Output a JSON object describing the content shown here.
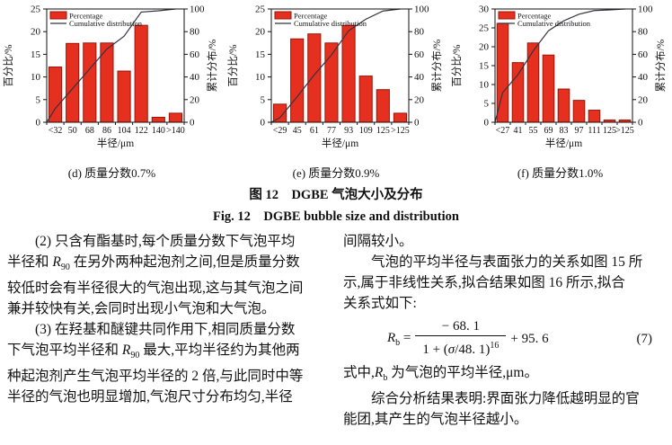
{
  "figure": {
    "caption_cn": "图 12　DGBE 气泡大小及分布",
    "caption_en": "Fig. 12　DGBE bubble size and distribution",
    "legend": {
      "bar": "Percentage",
      "line": "Cumulative distribution"
    },
    "colors": {
      "bar_fill": "#e53020",
      "bar_stroke": "#9b1408",
      "cumulative_line": "#333344",
      "axis": "#111111"
    }
  },
  "chart_data": [
    {
      "panel": "d",
      "type": "bar",
      "title": "(d) 质量分数0.7%",
      "xlabel": "半径/μm",
      "ylabel_left": "百分比/%",
      "ylabel_right": "累计分布/%",
      "categories": [
        "<32",
        "50",
        "68",
        "86",
        "104",
        "122",
        "140",
        ">140"
      ],
      "percentage": [
        12.2,
        17.4,
        17.5,
        17.5,
        11.3,
        21.4,
        1.1,
        2.0
      ],
      "cumulative": [
        12.2,
        29.6,
        47.1,
        64.6,
        75.9,
        97.3,
        98.4,
        100
      ],
      "ylim_left": [
        0,
        25
      ],
      "left_ticks": [
        0,
        5,
        10,
        15,
        20,
        25
      ],
      "ylim_right": [
        0,
        100
      ],
      "right_ticks": [
        0,
        20,
        40,
        60,
        80,
        100
      ]
    },
    {
      "panel": "e",
      "type": "bar",
      "title": "(e) 质量分数0.9%",
      "xlabel": "半径/μm",
      "ylabel_left": "百分比/%",
      "ylabel_right": "累计分布/%",
      "categories": [
        "<29",
        "45",
        "61",
        "77",
        "93",
        "109",
        "125",
        ">125"
      ],
      "percentage": [
        4.0,
        18.4,
        19.5,
        17.5,
        21.4,
        10.2,
        7.2,
        2.0
      ],
      "cumulative": [
        4.0,
        22.4,
        41.9,
        59.4,
        80.8,
        91.0,
        98.2,
        100
      ],
      "ylim_left": [
        0,
        25
      ],
      "left_ticks": [
        0,
        5,
        10,
        15,
        20,
        25
      ],
      "ylim_right": [
        0,
        100
      ],
      "right_ticks": [
        0,
        20,
        40,
        60,
        80,
        100
      ]
    },
    {
      "panel": "f",
      "type": "bar",
      "title": "(f) 质量分数1.0%",
      "xlabel": "半径/μm",
      "ylabel_left": "百分比/%",
      "ylabel_right": "累计分布/%",
      "categories": [
        "<27",
        "41",
        "55",
        "69",
        "83",
        "97",
        "111",
        "125",
        ">125"
      ],
      "percentage": [
        26.2,
        15.8,
        21.0,
        17.8,
        8.8,
        5.8,
        3.2,
        0.6,
        0.6
      ],
      "cumulative": [
        26.2,
        42.0,
        63.0,
        80.8,
        89.6,
        95.4,
        98.6,
        99.2,
        100
      ],
      "ylim_left": [
        0,
        30
      ],
      "left_ticks": [
        0,
        5,
        10,
        15,
        20,
        25,
        30
      ],
      "ylim_right": [
        0,
        100
      ],
      "right_ticks": [
        0,
        20,
        40,
        60,
        80,
        100
      ]
    }
  ],
  "body": {
    "left_column_lines": [
      "　　(2) 只含有酯基时,每个质量分数下气泡平均",
      "半径和 <i>R</i><sub>90</sub> 在另外两种起泡剂之间,但是质量分数",
      "较低时会有半径很大的气泡出现,这与其气泡之间",
      "兼并较快有关,会同时出现小气泡和大气泡。",
      "　　(3) 在羟基和醚键共同作用下,相同质量分数",
      "下气泡平均半径和 <i>R</i><sub>90</sub> 最大,平均半径约为其他两",
      "种起泡剂产生气泡平均半径的 2 倍,与此同时中等",
      "半径的气泡也明显增加,气泡尺寸分布均匀,半径"
    ],
    "right_column": {
      "lines_before": [
        "间隔较小。",
        "　　气泡的平均半径与表面张力的关系如图 15 所",
        "示,属于非线性关系,拟合结果如图 16 所示,拟合",
        "关系式如下:"
      ],
      "formula": {
        "lhs_html": "<i>R</i><sub>b</sub> =",
        "numerator": "− 68. 1",
        "den_html": "1 + (<i>σ</i>/48. 1)<sup>16</sup>",
        "tail": "+ 95. 6",
        "number": "(7)"
      },
      "lines_after": [
        "式中,<i>R</i><sub>b</sub> 为气泡的平均半径,μm。",
        "　　综合分析结果表明:界面张力降低越明显的官",
        "能团,其产生的气泡半径越小。"
      ]
    }
  }
}
